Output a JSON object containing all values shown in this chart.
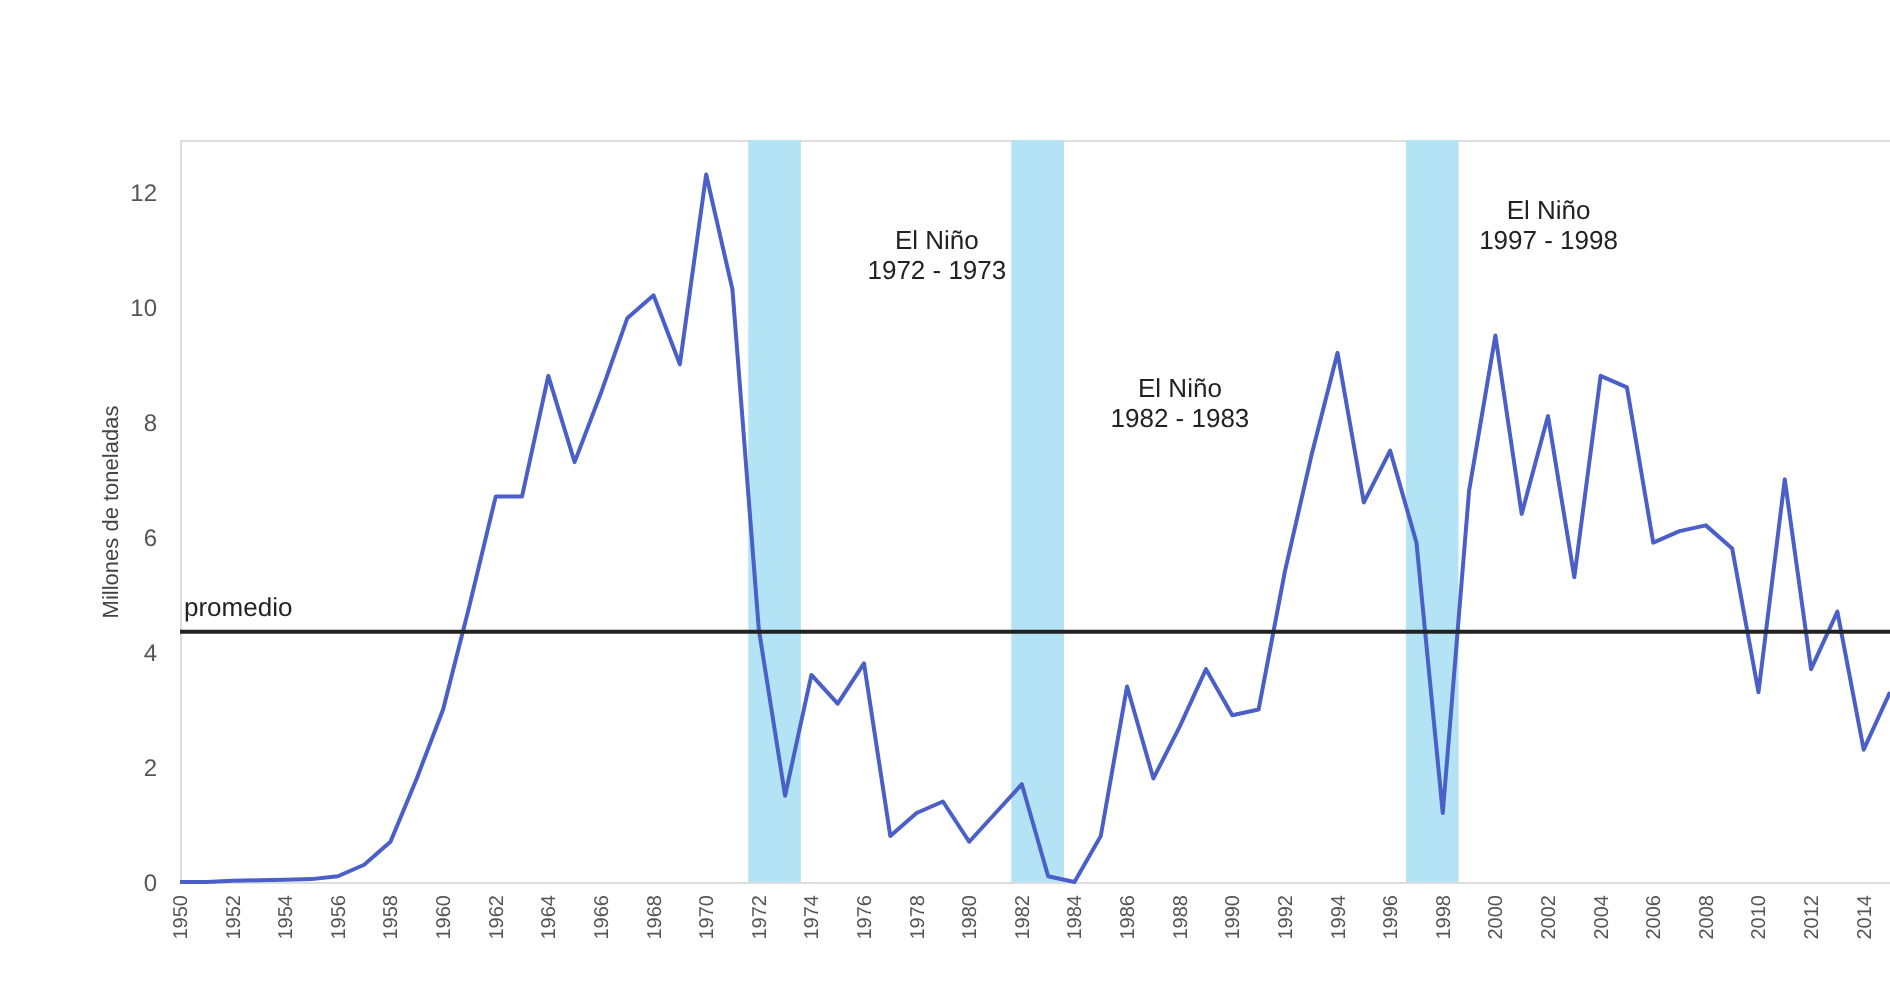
{
  "chart_data": {
    "type": "line",
    "ylabel": "Millones de toneladas",
    "x": [
      1950,
      1951,
      1952,
      1953,
      1954,
      1955,
      1956,
      1957,
      1958,
      1959,
      1960,
      1961,
      1962,
      1963,
      1964,
      1965,
      1966,
      1967,
      1968,
      1969,
      1970,
      1971,
      1972,
      1973,
      1974,
      1975,
      1976,
      1977,
      1978,
      1979,
      1980,
      1981,
      1982,
      1983,
      1984,
      1985,
      1986,
      1987,
      1988,
      1989,
      1990,
      1991,
      1992,
      1993,
      1994,
      1995,
      1996,
      1997,
      1998,
      1999,
      2000,
      2001,
      2002,
      2003,
      2004,
      2005,
      2006,
      2007,
      2008,
      2009,
      2010,
      2011,
      2012,
      2013,
      2014,
      2015
    ],
    "series": [
      {
        "color": "#4a5fc8",
        "values": [
          0.0,
          0.0,
          0.02,
          0.03,
          0.04,
          0.05,
          0.1,
          0.3,
          0.7,
          1.8,
          3.0,
          4.8,
          6.7,
          6.7,
          8.8,
          7.3,
          8.5,
          9.8,
          10.2,
          9.0,
          12.3,
          10.3,
          4.4,
          1.5,
          3.6,
          3.1,
          3.8,
          0.8,
          1.2,
          1.4,
          0.7,
          1.2,
          1.7,
          0.1,
          0.0,
          0.8,
          3.4,
          1.8,
          2.7,
          3.7,
          2.9,
          3.0,
          5.4,
          7.4,
          9.2,
          6.6,
          7.5,
          5.9,
          1.2,
          6.8,
          9.5,
          6.4,
          8.1,
          5.3,
          8.8,
          8.6,
          5.9,
          6.1,
          6.2,
          5.8,
          3.3,
          7.0,
          3.7,
          4.7,
          2.3,
          3.3
        ]
      }
    ],
    "xlim": [
      1950,
      2015
    ],
    "xticks": [
      1950,
      1952,
      1954,
      1956,
      1958,
      1960,
      1962,
      1964,
      1966,
      1968,
      1970,
      1972,
      1974,
      1976,
      1978,
      1980,
      1982,
      1984,
      1986,
      1988,
      1990,
      1992,
      1994,
      1996,
      1998,
      2000,
      2002,
      2004,
      2006,
      2008,
      2010,
      2012,
      2014
    ],
    "ylim": [
      0,
      12.9
    ],
    "yticks": [
      0,
      2,
      4,
      6,
      8,
      10,
      12
    ],
    "ref_lines": [
      {
        "axis": "y",
        "value": 4.35,
        "label": "promedio",
        "color": "#222222"
      }
    ],
    "bands": [
      {
        "axis": "x",
        "from": 1971.6,
        "to": 1973.6,
        "label": "El Niño\n1972 - 1973",
        "color": "#b3e3f5"
      },
      {
        "axis": "x",
        "from": 1981.6,
        "to": 1983.6,
        "label": "El Niño\n1982 - 1983",
        "color": "#b3e3f5"
      },
      {
        "axis": "x",
        "from": 1996.6,
        "to": 1998.6,
        "label": "El Niño\n1997 - 1998",
        "color": "#b3e3f5"
      }
    ],
    "marker": "none"
  }
}
